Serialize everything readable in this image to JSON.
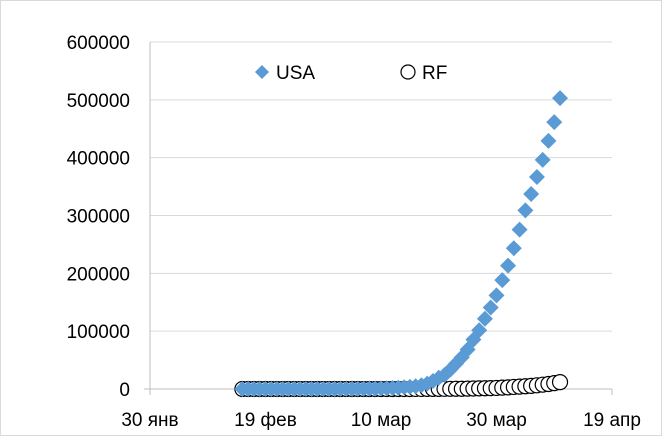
{
  "chart_data": {
    "type": "scatter",
    "title": "",
    "xlabel": "",
    "ylabel": "",
    "x_axis": {
      "type": "date",
      "min": "2020-01-30",
      "max": "2020-04-19",
      "ticks": [
        "2020-01-30",
        "2020-02-19",
        "2020-03-10",
        "2020-03-30",
        "2020-04-19"
      ],
      "tick_labels": [
        "30 янв",
        "19 фев",
        "10 мар",
        "30 мар",
        "19 апр"
      ]
    },
    "y_axis": {
      "min": 0,
      "max": 600000,
      "ticks": [
        0,
        100000,
        200000,
        300000,
        400000,
        500000,
        600000
      ],
      "tick_labels": [
        "0",
        "100000",
        "200000",
        "300000",
        "400000",
        "500000",
        "600000"
      ]
    },
    "grid": "horizontal",
    "legend": "top",
    "series": [
      {
        "name": "USA",
        "marker": "diamond",
        "color": "#5b9bd5",
        "x": [
          "2020-02-15",
          "2020-02-16",
          "2020-02-17",
          "2020-02-18",
          "2020-02-19",
          "2020-02-20",
          "2020-02-21",
          "2020-02-22",
          "2020-02-23",
          "2020-02-24",
          "2020-02-25",
          "2020-02-26",
          "2020-02-27",
          "2020-02-28",
          "2020-02-29",
          "2020-03-01",
          "2020-03-02",
          "2020-03-03",
          "2020-03-04",
          "2020-03-05",
          "2020-03-06",
          "2020-03-07",
          "2020-03-08",
          "2020-03-09",
          "2020-03-10",
          "2020-03-11",
          "2020-03-12",
          "2020-03-13",
          "2020-03-14",
          "2020-03-15",
          "2020-03-16",
          "2020-03-17",
          "2020-03-18",
          "2020-03-19",
          "2020-03-20",
          "2020-03-21",
          "2020-03-22",
          "2020-03-23",
          "2020-03-24",
          "2020-03-25",
          "2020-03-26",
          "2020-03-27",
          "2020-03-28",
          "2020-03-29",
          "2020-03-30",
          "2020-03-31",
          "2020-04-01",
          "2020-04-02",
          "2020-04-03",
          "2020-04-04",
          "2020-04-05",
          "2020-04-06",
          "2020-04-07",
          "2020-04-08",
          "2020-04-09",
          "2020-04-10"
        ],
        "y": [
          15,
          15,
          15,
          15,
          15,
          15,
          15,
          35,
          35,
          35,
          53,
          57,
          60,
          62,
          68,
          75,
          100,
          124,
          158,
          221,
          319,
          435,
          541,
          704,
          994,
          1301,
          1697,
          2247,
          2943,
          3680,
          4663,
          6411,
          9197,
          13779,
          19367,
          24192,
          33592,
          43781,
          54856,
          68211,
          85356,
          101657,
          121478,
          140886,
          161807,
          188172,
          213372,
          243453,
          275586,
          308850,
          337072,
          366667,
          396223,
          429052,
          461437,
          502876
        ]
      },
      {
        "name": "RF",
        "marker": "circle-open",
        "color": "#000000",
        "x": [
          "2020-02-15",
          "2020-02-16",
          "2020-02-17",
          "2020-02-18",
          "2020-02-19",
          "2020-02-20",
          "2020-02-21",
          "2020-02-22",
          "2020-02-23",
          "2020-02-24",
          "2020-02-25",
          "2020-02-26",
          "2020-02-27",
          "2020-02-28",
          "2020-02-29",
          "2020-03-01",
          "2020-03-02",
          "2020-03-03",
          "2020-03-04",
          "2020-03-05",
          "2020-03-06",
          "2020-03-07",
          "2020-03-08",
          "2020-03-09",
          "2020-03-10",
          "2020-03-11",
          "2020-03-12",
          "2020-03-13",
          "2020-03-14",
          "2020-03-15",
          "2020-03-16",
          "2020-03-17",
          "2020-03-18",
          "2020-03-19",
          "2020-03-20",
          "2020-03-21",
          "2020-03-22",
          "2020-03-23",
          "2020-03-24",
          "2020-03-25",
          "2020-03-26",
          "2020-03-27",
          "2020-03-28",
          "2020-03-29",
          "2020-03-30",
          "2020-03-31",
          "2020-04-01",
          "2020-04-02",
          "2020-04-03",
          "2020-04-04",
          "2020-04-05",
          "2020-04-06",
          "2020-04-07",
          "2020-04-08",
          "2020-04-09",
          "2020-04-10"
        ],
        "y": [
          2,
          2,
          2,
          2,
          2,
          2,
          2,
          2,
          2,
          2,
          2,
          2,
          2,
          2,
          2,
          2,
          3,
          3,
          3,
          4,
          10,
          14,
          17,
          17,
          20,
          28,
          34,
          45,
          59,
          63,
          90,
          114,
          147,
          199,
          253,
          306,
          367,
          438,
          495,
          658,
          840,
          1036,
          1264,
          1534,
          1836,
          2337,
          2777,
          3548,
          4149,
          4731,
          5389,
          6343,
          7497,
          8672,
          10131,
          11917
        ]
      }
    ]
  }
}
